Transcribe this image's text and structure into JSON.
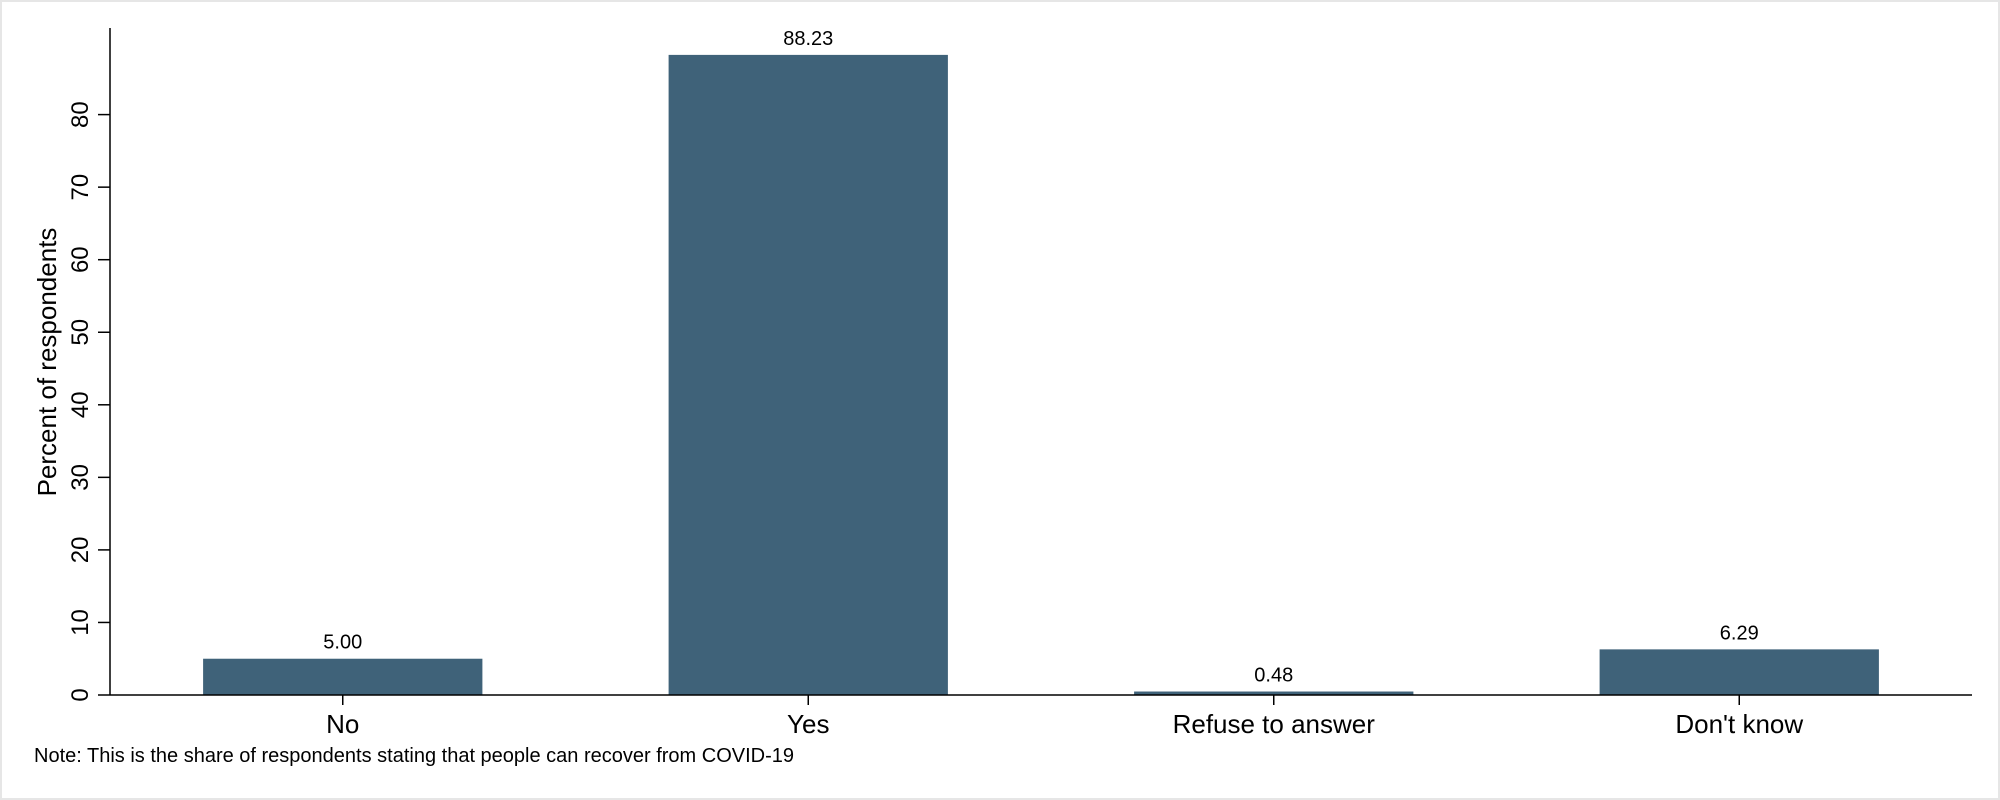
{
  "chart_data": {
    "type": "bar",
    "categories": [
      "No",
      "Yes",
      "Refuse to answer",
      "Don't know"
    ],
    "values": [
      5.0,
      88.23,
      0.48,
      6.29
    ],
    "value_labels": [
      "5.00",
      "88.23",
      "0.48",
      "6.29"
    ],
    "ylabel": "Percent of respondents",
    "yticks": [
      0,
      10,
      20,
      30,
      40,
      50,
      60,
      70,
      80
    ],
    "ylim": [
      0,
      92
    ],
    "grid": false,
    "bar_color": "#3f6279",
    "note": "Note: This is the share of respondents stating that people can recover from COVID-19"
  }
}
